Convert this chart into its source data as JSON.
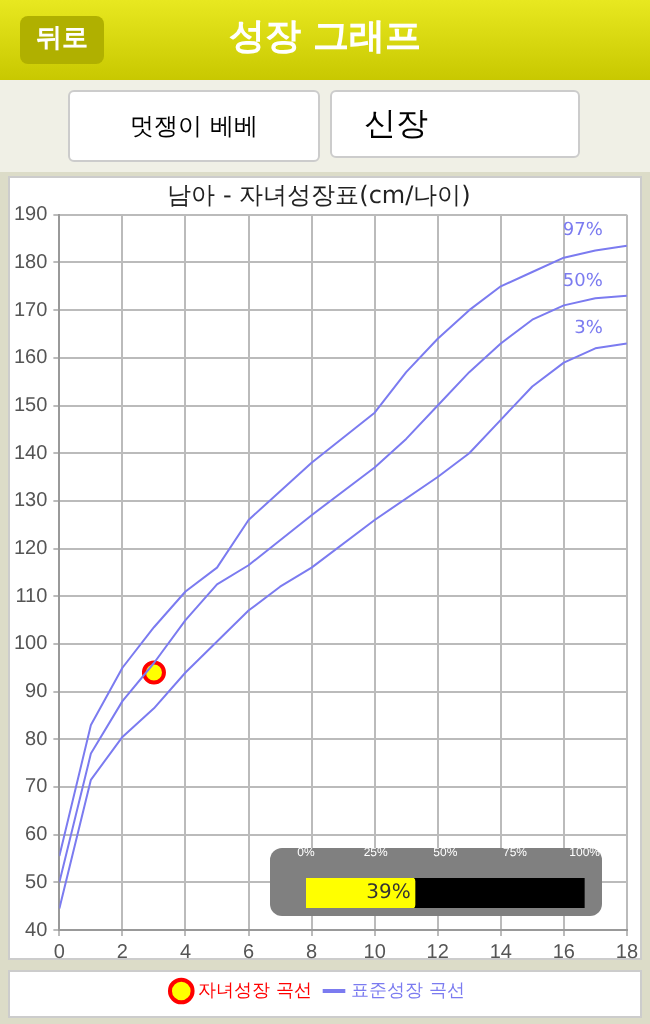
{
  "chart_data": [
    {
      "type": "line",
      "title": "남아 - 자녀성장표(cm/나이)",
      "legend_title": "표준성장 곡선",
      "legend": "bottom",
      "grid": true,
      "marker": "none",
      "line_style": "solid",
      "annotations": [
        "뒤로",
        "성장 그래프",
        "멋쟁이 베베",
        "신장"
      ],
      "xlim": [
        0,
        18
      ],
      "xticks": [
        0,
        2,
        4,
        6,
        8,
        10,
        12,
        14,
        16,
        18
      ],
      "ylim": [
        40,
        190
      ],
      "yticks": [
        40,
        50,
        60,
        70,
        80,
        90,
        100,
        110,
        120,
        130,
        140,
        150,
        160,
        170,
        180,
        190
      ],
      "series": [
        {
          "name": "97%",
          "color": "#7b7bf0",
          "x": [
            0,
            1,
            2,
            3,
            4,
            5,
            6,
            8,
            10,
            11,
            12,
            13,
            14,
            15,
            16,
            17,
            18
          ],
          "values": [
            55.5,
            83,
            95,
            103.5,
            111,
            116,
            126,
            138,
            148.5,
            157,
            164,
            170,
            175,
            178,
            181,
            182.5,
            183.5
          ]
        },
        {
          "name": "50%",
          "color": "#7b7bf0",
          "x": [
            0,
            1,
            2,
            3,
            4,
            5,
            6,
            8,
            10,
            11,
            12,
            13,
            14,
            15,
            16,
            17,
            18
          ],
          "values": [
            50,
            77,
            88,
            96,
            105,
            112.5,
            116.5,
            127,
            137,
            143,
            150,
            157,
            163,
            168,
            171,
            172.5,
            173
          ]
        },
        {
          "name": "3%",
          "color": "#7b7bf0",
          "x": [
            0,
            1,
            2,
            3,
            4,
            6,
            7,
            8,
            10,
            12,
            13,
            14,
            15,
            16,
            17,
            18
          ],
          "values": [
            44.5,
            71.5,
            80.5,
            86.5,
            94,
            107,
            112,
            116,
            126,
            135,
            140,
            147,
            154,
            159,
            162,
            163
          ]
        },
        {
          "name": "자녀성장 곡선",
          "type": "scatter",
          "marker": "circle",
          "color": "#ff0000",
          "x": [
            3
          ],
          "values": [
            94
          ]
        }
      ]
    },
    {
      "type": "bar",
      "orientation": "horizontal",
      "categories": [
        null
      ],
      "values": [
        39
      ],
      "value_labels": [
        "39%"
      ],
      "color": "#ffff00",
      "tick_labels": "x",
      "xlim": [
        0,
        100
      ],
      "xticks": [
        {
          "value": 0,
          "label": "0%"
        },
        {
          "value": 25,
          "label": "25%"
        },
        {
          "value": 50,
          "label": "50%"
        },
        {
          "value": 75,
          "label": "75%"
        },
        {
          "value": 100,
          "label": "100%"
        }
      ]
    }
  ]
}
